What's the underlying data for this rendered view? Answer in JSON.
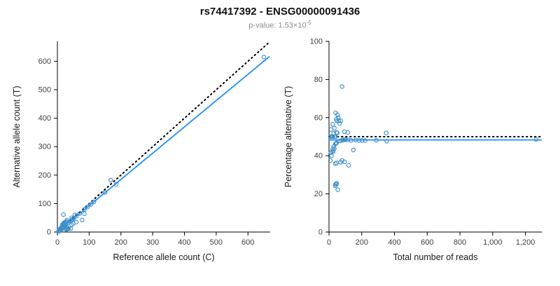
{
  "header": {
    "title": "rs74417392 - ENSG00000091436",
    "pvalue_label": "p-value: ",
    "pvalue_base": "1.53×10",
    "pvalue_exponent": "-5"
  },
  "colors": {
    "point": "#4090c5",
    "fit_line": "#1e8fff",
    "identity_line": "#000000"
  },
  "chart_data": [
    {
      "type": "scatter",
      "xlabel": "Reference allele count (C)",
      "ylabel": "Alternative allele count (T)",
      "xlim": [
        0,
        670
      ],
      "ylim": [
        0,
        670
      ],
      "xticks": [
        0,
        100,
        200,
        300,
        400,
        500,
        600
      ],
      "yticks": [
        0,
        100,
        200,
        300,
        400,
        500,
        600
      ],
      "grid": false,
      "legend": "none",
      "lines": [
        {
          "name": "identity-line",
          "x1": 0,
          "y1": 0,
          "x2": 668,
          "y2": 668,
          "style": "dotted",
          "color": "#000000",
          "width": 2
        },
        {
          "name": "fit-line",
          "x1": 0,
          "y1": 0,
          "x2": 668,
          "y2": 617,
          "style": "solid",
          "color": "#1e8fff",
          "width": 1.8
        }
      ],
      "points": [
        [
          4,
          4
        ],
        [
          5,
          3
        ],
        [
          6,
          7
        ],
        [
          7,
          5
        ],
        [
          8,
          8
        ],
        [
          9,
          6
        ],
        [
          10,
          10
        ],
        [
          10,
          13
        ],
        [
          11,
          8
        ],
        [
          12,
          12
        ],
        [
          13,
          10
        ],
        [
          14,
          15
        ],
        [
          15,
          11
        ],
        [
          15,
          18
        ],
        [
          16,
          13
        ],
        [
          17,
          17
        ],
        [
          18,
          14
        ],
        [
          19,
          61
        ],
        [
          20,
          20
        ],
        [
          21,
          18
        ],
        [
          22,
          24
        ],
        [
          23,
          20
        ],
        [
          24,
          26
        ],
        [
          25,
          22
        ],
        [
          28,
          9
        ],
        [
          30,
          10
        ],
        [
          33,
          11
        ],
        [
          35,
          12
        ],
        [
          25,
          14
        ],
        [
          30,
          17
        ],
        [
          45,
          26
        ],
        [
          50,
          30
        ],
        [
          60,
          35
        ],
        [
          20,
          28
        ],
        [
          25,
          35
        ],
        [
          30,
          42
        ],
        [
          18,
          26
        ],
        [
          22,
          33
        ],
        [
          15,
          25
        ],
        [
          20,
          32
        ],
        [
          28,
          37
        ],
        [
          35,
          32
        ],
        [
          40,
          37
        ],
        [
          44,
          41
        ],
        [
          48,
          45
        ],
        [
          52,
          49
        ],
        [
          55,
          60
        ],
        [
          45,
          50
        ],
        [
          60,
          56
        ],
        [
          70,
          65
        ],
        [
          85,
          79
        ],
        [
          95,
          88
        ],
        [
          105,
          97
        ],
        [
          115,
          106
        ],
        [
          150,
          139
        ],
        [
          168,
          182
        ],
        [
          185,
          168
        ],
        [
          650,
          615
        ],
        [
          85,
          64
        ],
        [
          78,
          42
        ],
        [
          42,
          12
        ]
      ]
    },
    {
      "type": "scatter",
      "xlabel": "Total number of reads",
      "ylabel": "Percentage alternative (T)",
      "xlim": [
        0,
        1300
      ],
      "ylim": [
        0,
        100
      ],
      "xticks": [
        0,
        200,
        400,
        600,
        800,
        1000,
        1200
      ],
      "yticks": [
        0,
        20,
        40,
        60,
        80,
        100
      ],
      "grid": false,
      "legend": "none",
      "lines": [
        {
          "name": "expected-50pct-line",
          "x1": 0,
          "y1": 50,
          "x2": 1300,
          "y2": 50,
          "style": "dotted",
          "color": "#000000",
          "width": 2
        },
        {
          "name": "observed-mean-line",
          "x1": 0,
          "y1": 48.3,
          "x2": 1300,
          "y2": 48.3,
          "style": "solid",
          "color": "#1e8fff",
          "width": 1.8
        }
      ],
      "points": [
        [
          8,
          50
        ],
        [
          8,
          37.5
        ],
        [
          13,
          53.8
        ],
        [
          12,
          41.7
        ],
        [
          16,
          50
        ],
        [
          15,
          40
        ],
        [
          20,
          50
        ],
        [
          23,
          56.5
        ],
        [
          19,
          42.1
        ],
        [
          24,
          50
        ],
        [
          23,
          43.5
        ],
        [
          29,
          51.7
        ],
        [
          26,
          42.3
        ],
        [
          33,
          54.5
        ],
        [
          29,
          44.8
        ],
        [
          34,
          50
        ],
        [
          32,
          43.8
        ],
        [
          80,
          76.3
        ],
        [
          40,
          50
        ],
        [
          39,
          46.2
        ],
        [
          46,
          52.2
        ],
        [
          43,
          46.5
        ],
        [
          50,
          52
        ],
        [
          47,
          46.8
        ],
        [
          37,
          24.3
        ],
        [
          40,
          25
        ],
        [
          44,
          25
        ],
        [
          47,
          25.5
        ],
        [
          39,
          35.9
        ],
        [
          47,
          36.2
        ],
        [
          71,
          36.6
        ],
        [
          80,
          37.5
        ],
        [
          95,
          36.8
        ],
        [
          48,
          58.3
        ],
        [
          60,
          58.3
        ],
        [
          72,
          58.3
        ],
        [
          44,
          59.1
        ],
        [
          55,
          60
        ],
        [
          40,
          62.5
        ],
        [
          52,
          61.5
        ],
        [
          65,
          56.9
        ],
        [
          67,
          47.8
        ],
        [
          77,
          48.1
        ],
        [
          85,
          48.2
        ],
        [
          93,
          48.4
        ],
        [
          101,
          48.5
        ],
        [
          115,
          52.2
        ],
        [
          95,
          52.6
        ],
        [
          116,
          48.3
        ],
        [
          135,
          48.1
        ],
        [
          164,
          48.2
        ],
        [
          183,
          48.1
        ],
        [
          202,
          48
        ],
        [
          221,
          48
        ],
        [
          289,
          48.1
        ],
        [
          350,
          52
        ],
        [
          353,
          47.6
        ],
        [
          1265,
          48.6
        ],
        [
          149,
          43
        ],
        [
          120,
          35
        ],
        [
          54,
          22.2
        ]
      ]
    }
  ]
}
